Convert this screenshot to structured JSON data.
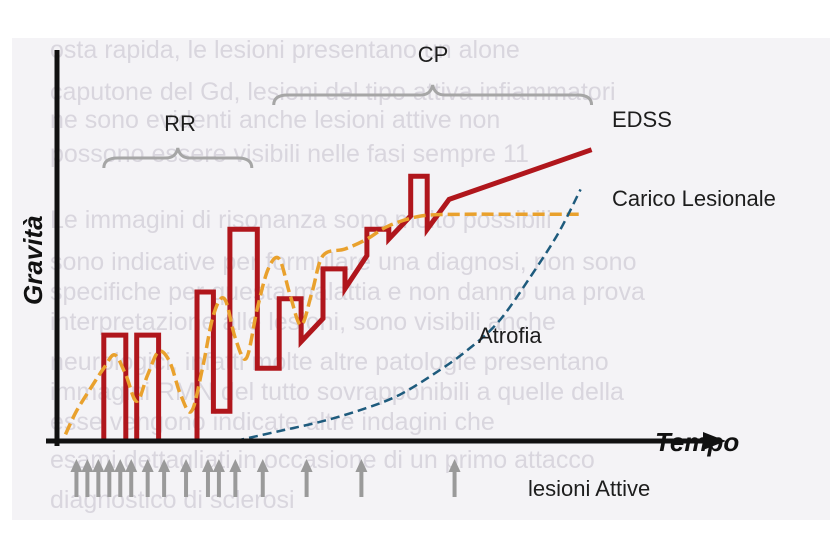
{
  "chart_data": {
    "type": "line",
    "title": "",
    "xlabel": "Tempo",
    "ylabel": "Gravità",
    "grid": false,
    "x_range": [
      0,
      100
    ],
    "y_range": [
      0,
      100
    ],
    "phases": [
      {
        "label": "RR",
        "x_start": 8,
        "x_end": 35
      },
      {
        "label": "CP",
        "x_start": 39,
        "x_end": 97
      }
    ],
    "series": [
      {
        "name": "EDSS",
        "color": "#b0161c",
        "style": "solid",
        "points": [
          [
            8,
            0
          ],
          [
            8,
            32
          ],
          [
            12,
            32
          ],
          [
            12,
            0
          ],
          [
            14,
            0
          ],
          [
            14,
            32
          ],
          [
            18,
            32
          ],
          [
            18,
            0
          ],
          [
            25,
            0
          ],
          [
            25,
            45
          ],
          [
            28,
            45
          ],
          [
            28,
            9
          ],
          [
            31,
            9
          ],
          [
            31,
            64
          ],
          [
            36,
            64
          ],
          [
            36,
            22
          ],
          [
            40,
            22
          ],
          [
            40,
            43
          ],
          [
            44,
            43
          ],
          [
            44,
            30
          ],
          [
            48,
            37
          ],
          [
            48,
            52
          ],
          [
            52,
            52
          ],
          [
            52,
            46
          ],
          [
            56,
            56
          ],
          [
            56,
            64
          ],
          [
            60,
            64
          ],
          [
            60,
            61
          ],
          [
            64,
            68
          ],
          [
            64,
            80
          ],
          [
            67,
            80
          ],
          [
            67,
            64
          ],
          [
            71,
            73
          ],
          [
            97,
            88
          ]
        ]
      },
      {
        "name": "Carico Lesionale",
        "color": "#e9a12d",
        "style": "dashed",
        "points": [
          [
            1,
            2
          ],
          [
            3,
            9
          ],
          [
            6,
            17
          ],
          [
            8,
            22
          ],
          [
            10,
            26
          ],
          [
            12,
            20
          ],
          [
            14,
            12
          ],
          [
            16,
            20
          ],
          [
            18,
            27
          ],
          [
            20,
            24
          ],
          [
            22,
            14
          ],
          [
            24,
            9
          ],
          [
            26,
            22
          ],
          [
            28,
            38
          ],
          [
            30,
            43
          ],
          [
            32,
            31
          ],
          [
            34,
            25
          ],
          [
            36,
            40
          ],
          [
            38,
            52
          ],
          [
            40,
            55
          ],
          [
            42,
            44
          ],
          [
            44,
            35
          ],
          [
            46,
            45
          ],
          [
            48,
            56
          ],
          [
            52,
            58
          ],
          [
            56,
            61
          ],
          [
            60,
            65
          ],
          [
            66,
            68
          ],
          [
            74,
            68.5
          ],
          [
            82,
            68.5
          ],
          [
            95,
            68.5
          ]
        ]
      },
      {
        "name": "Atrofia",
        "color": "#1e5b7d",
        "style": "dashed",
        "points": [
          [
            32,
            0
          ],
          [
            40,
            3
          ],
          [
            48,
            6
          ],
          [
            56,
            10
          ],
          [
            62,
            14
          ],
          [
            68,
            20
          ],
          [
            74,
            27
          ],
          [
            80,
            36
          ],
          [
            86,
            50
          ],
          [
            91,
            63
          ],
          [
            95,
            76
          ]
        ]
      }
    ],
    "annotation": {
      "label": "lesioni Attive",
      "marker_x": [
        3,
        5,
        7,
        9,
        11,
        13,
        16,
        19,
        23,
        27,
        29,
        32,
        37,
        45,
        55,
        72
      ]
    }
  },
  "colors": {
    "axis": "#111111",
    "brace": "#a6a6a6",
    "arrow": "#9a9a9a",
    "panel": "#f4f3f6",
    "ghost_text": "#d9d6de"
  }
}
